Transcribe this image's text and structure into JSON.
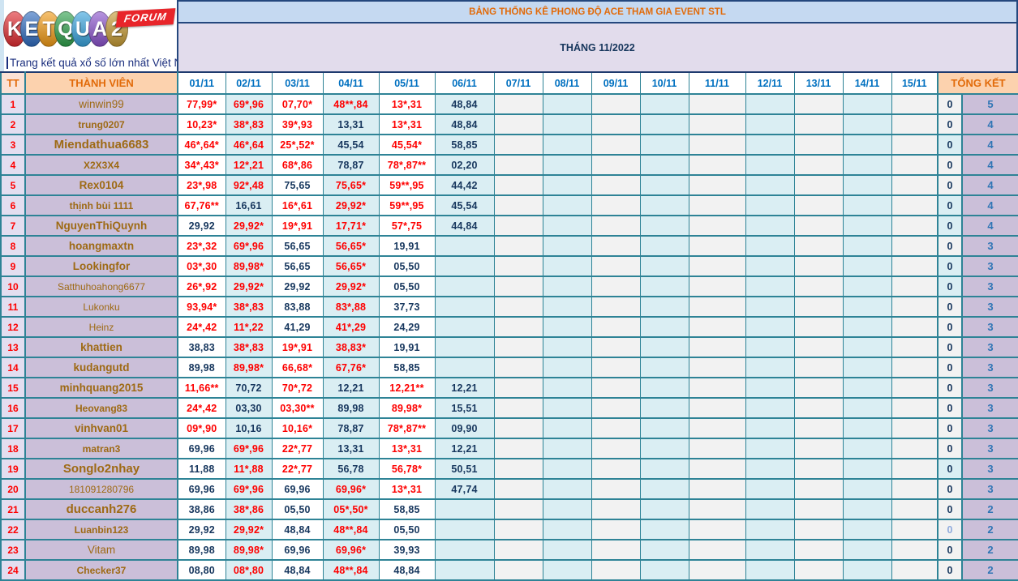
{
  "logo": {
    "letters": [
      {
        "ch": "K",
        "color": "#e02b30"
      },
      {
        "ch": "E",
        "color": "#2f6bbf"
      },
      {
        "ch": "T",
        "color": "#f19a15"
      },
      {
        "ch": "Q",
        "color": "#2fa14c"
      },
      {
        "ch": "U",
        "color": "#38a3dd"
      },
      {
        "ch": "A",
        "color": "#8a52cc"
      },
      {
        "ch": "2",
        "color": "#c59a33"
      }
    ],
    "forum_label": "FORUM",
    "tagline": "Trang kết quả xổ số lớn nhất Việt Nam"
  },
  "header": {
    "title": "BẢNG THỐNG KÊ PHONG ĐỘ ACE THAM GIA EVENT STL",
    "month": "THÁNG 11/2022"
  },
  "colors": {
    "accent_orange": "#e26b0a",
    "date_blue": "#0070c0",
    "value_red": "#fe0000",
    "value_navy": "#17375e",
    "total_blue": "#2f75b5",
    "band_blue": "#c5d9f1",
    "band_lavender": "#e2dcec",
    "name_purple": "#cbbfd9",
    "col_blue": "#daeef3",
    "grid_teal": "#2e8396"
  },
  "table": {
    "tt_label": "TT",
    "member_label": "THÀNH VIÊN",
    "total_label": "TỔNG KẾT",
    "date_columns": [
      "01/11",
      "02/11",
      "03/11",
      "04/11",
      "05/11",
      "06/11",
      "07/11",
      "08/11",
      "09/11",
      "10/11",
      "11/11",
      "12/11",
      "13/11",
      "14/11",
      "15/11"
    ],
    "rows": [
      {
        "tt": "1",
        "name": "winwin99",
        "bold": false,
        "size": "m",
        "values": [
          "77,99*",
          "69*,96",
          "07,70*",
          "48**,84",
          "13*,31",
          "48,84",
          "",
          "",
          "",
          "",
          "",
          "",
          "",
          "",
          ""
        ],
        "zero": "0",
        "total": "5"
      },
      {
        "tt": "2",
        "name": "trung0207",
        "bold": true,
        "size": "s",
        "values": [
          "10,23*",
          "38*,83",
          "39*,93",
          "13,31",
          "13*,31",
          "48,84",
          "",
          "",
          "",
          "",
          "",
          "",
          "",
          "",
          ""
        ],
        "zero": "0",
        "total": "4"
      },
      {
        "tt": "3",
        "name": "Miendathua6683",
        "bold": true,
        "size": "l",
        "zero_blue": true,
        "values": [
          "46*,64*",
          "46*,64",
          "25*,52*",
          "45,54",
          "45,54*",
          "58,85",
          "",
          "",
          "",
          "",
          "",
          "",
          "",
          "",
          ""
        ],
        "zero": "0",
        "total": "4"
      },
      {
        "tt": "4",
        "name": "X2X3X4",
        "bold": true,
        "size": "s",
        "values": [
          "34*,43*",
          "12*,21",
          "68*,86",
          "78,87",
          "78*,87**",
          "02,20",
          "",
          "",
          "",
          "",
          "",
          "",
          "",
          "",
          ""
        ],
        "zero": "0",
        "total": "4"
      },
      {
        "tt": "5",
        "name": "Rex0104",
        "bold": true,
        "size": "m",
        "values": [
          "23*,98",
          "92*,48",
          "75,65",
          "75,65*",
          "59**,95",
          "44,42",
          "",
          "",
          "",
          "",
          "",
          "",
          "",
          "",
          ""
        ],
        "zero": "0",
        "total": "4"
      },
      {
        "tt": "6",
        "name": "thịnh bùi 1111",
        "bold": true,
        "size": "s",
        "zero_blue": true,
        "values": [
          "67,76**",
          "16,61",
          "16*,61",
          "29,92*",
          "59**,95",
          "45,54",
          "",
          "",
          "",
          "",
          "",
          "",
          "",
          "",
          ""
        ],
        "zero": "0",
        "total": "4"
      },
      {
        "tt": "7",
        "name": "NguyenThiQuynh",
        "bold": true,
        "size": "m",
        "zero_blue": true,
        "values": [
          "29,92",
          "29,92*",
          "19*,91",
          "17,71*",
          "57*,75",
          "44,84",
          "",
          "",
          "",
          "",
          "",
          "",
          "",
          "",
          ""
        ],
        "zero": "0",
        "total": "4"
      },
      {
        "tt": "8",
        "name": "hoangmaxtn",
        "bold": true,
        "size": "m",
        "values": [
          "23*,32",
          "69*,96",
          "56,65",
          "56,65*",
          "19,91",
          "",
          "",
          "",
          "",
          "",
          "",
          "",
          "",
          "",
          ""
        ],
        "zero": "0",
        "total": "3"
      },
      {
        "tt": "9",
        "name": "Lookingfor",
        "bold": true,
        "size": "m",
        "zero_blue": true,
        "values": [
          "03*,30",
          "89,98*",
          "56,65",
          "56,65*",
          "05,50",
          "",
          "",
          "",
          "",
          "",
          "",
          "",
          "",
          "",
          ""
        ],
        "zero": "0",
        "total": "3"
      },
      {
        "tt": "10",
        "name": "Satthuhoahong6677",
        "bold": false,
        "size": "s",
        "zero_blue": true,
        "values": [
          "26*,92",
          "29,92*",
          "29,92",
          "29,92*",
          "05,50",
          "",
          "",
          "",
          "",
          "",
          "",
          "",
          "",
          "",
          ""
        ],
        "zero": "0",
        "total": "3"
      },
      {
        "tt": "11",
        "name": "Lukonku",
        "bold": false,
        "size": "s",
        "values": [
          "93,94*",
          "38*,83",
          "83,88",
          "83*,88",
          "37,73",
          "",
          "",
          "",
          "",
          "",
          "",
          "",
          "",
          "",
          ""
        ],
        "zero": "0",
        "total": "3"
      },
      {
        "tt": "12",
        "name": "Heinz",
        "bold": false,
        "size": "s",
        "values": [
          "24*,42",
          "11*,22",
          "41,29",
          "41*,29",
          "24,29",
          "",
          "",
          "",
          "",
          "",
          "",
          "",
          "",
          "",
          ""
        ],
        "zero": "0",
        "total": "3"
      },
      {
        "tt": "13",
        "name": "khattien",
        "bold": true,
        "size": "m",
        "values": [
          "38,83",
          "38*,83",
          "19*,91",
          "38,83*",
          "19,91",
          "",
          "",
          "",
          "",
          "",
          "",
          "",
          "",
          "",
          ""
        ],
        "zero": "0",
        "total": "3"
      },
      {
        "tt": "14",
        "name": "kudangutd",
        "bold": true,
        "size": "m",
        "values": [
          "89,98",
          "89,98*",
          "66,68*",
          "67,76*",
          "58,85",
          "",
          "",
          "",
          "",
          "",
          "",
          "",
          "",
          "",
          ""
        ],
        "zero": "0",
        "total": "3"
      },
      {
        "tt": "15",
        "name": "minhquang2015",
        "bold": true,
        "size": "m",
        "values": [
          "11,66**",
          "70,72",
          "70*,72",
          "12,21",
          "12,21**",
          "12,21",
          "",
          "",
          "",
          "",
          "",
          "",
          "",
          "",
          ""
        ],
        "zero": "0",
        "total": "3"
      },
      {
        "tt": "16",
        "name": "Heovang83",
        "bold": true,
        "size": "s",
        "values": [
          "24*,42",
          "03,30",
          "03,30**",
          "89,98",
          "89,98*",
          "15,51",
          "",
          "",
          "",
          "",
          "",
          "",
          "",
          "",
          ""
        ],
        "zero": "0",
        "total": "3"
      },
      {
        "tt": "17",
        "name": "vinhvan01",
        "bold": true,
        "size": "m",
        "values": [
          "09*,90",
          "10,16",
          "10,16*",
          "78,87",
          "78*,87**",
          "09,90",
          "",
          "",
          "",
          "",
          "",
          "",
          "",
          "",
          ""
        ],
        "zero": "0",
        "total": "3"
      },
      {
        "tt": "18",
        "name": "matran3",
        "bold": true,
        "size": "s",
        "values": [
          "69,96",
          "69*,96",
          "22*,77",
          "13,31",
          "13*,31",
          "12,21",
          "",
          "",
          "",
          "",
          "",
          "",
          "",
          "",
          ""
        ],
        "zero": "0",
        "total": "3"
      },
      {
        "tt": "19",
        "name": "Songlo2nhay",
        "bold": true,
        "size": "l",
        "zero_blue": true,
        "values": [
          "11,88",
          "11*,88",
          "22*,77",
          "56,78",
          "56,78*",
          "50,51",
          "",
          "",
          "",
          "",
          "",
          "",
          "",
          "",
          ""
        ],
        "zero": "0",
        "total": "3"
      },
      {
        "tt": "20",
        "name": "181091280796",
        "bold": false,
        "size": "s",
        "values": [
          "69,96",
          "69*,96",
          "69,96",
          "69,96*",
          "13*,31",
          "47,74",
          "",
          "",
          "",
          "",
          "",
          "",
          "",
          "",
          ""
        ],
        "zero": "0",
        "total": "3"
      },
      {
        "tt": "21",
        "name": "duccanh276",
        "bold": true,
        "size": "l",
        "values": [
          "38,86",
          "38*,86",
          "05,50",
          "05*,50*",
          "58,85",
          "",
          "",
          "",
          "",
          "",
          "",
          "",
          "",
          "",
          ""
        ],
        "zero": "0",
        "total": "2"
      },
      {
        "tt": "22",
        "name": "Luanbin123",
        "bold": true,
        "size": "s",
        "zero_light": true,
        "values": [
          "29,92",
          "29,92*",
          "48,84",
          "48**,84",
          "05,50",
          "",
          "",
          "",
          "",
          "",
          "",
          "",
          "",
          "",
          ""
        ],
        "zero": "0",
        "total": "2"
      },
      {
        "tt": "23",
        "name": "Vitam",
        "bold": false,
        "size": "m",
        "values": [
          "89,98",
          "89,98*",
          "69,96",
          "69,96*",
          "39,93",
          "",
          "",
          "",
          "",
          "",
          "",
          "",
          "",
          "",
          ""
        ],
        "zero": "0",
        "total": "2"
      },
      {
        "tt": "24",
        "name": "Checker37",
        "bold": true,
        "size": "s",
        "values": [
          "08,80",
          "08*,80",
          "48,84",
          "48**,84",
          "48,84",
          "",
          "",
          "",
          "",
          "",
          "",
          "",
          "",
          "",
          ""
        ],
        "zero": "0",
        "total": "2"
      }
    ]
  }
}
